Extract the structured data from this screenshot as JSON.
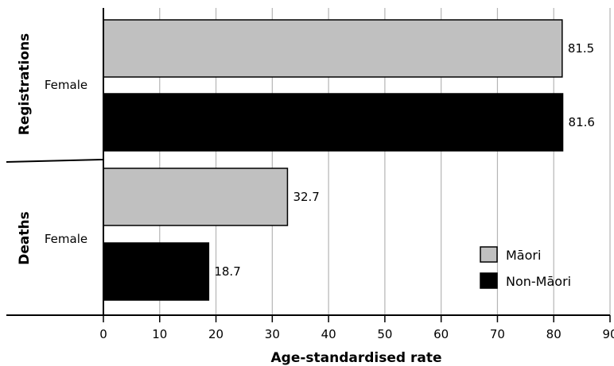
{
  "chart_data": {
    "type": "bar",
    "orientation": "horizontal",
    "xlabel": "Age-standardised rate",
    "xlim": [
      0,
      90
    ],
    "xticks": [
      0,
      10,
      20,
      30,
      40,
      50,
      60,
      70,
      80,
      90
    ],
    "grid": true,
    "groups": [
      {
        "name": "Registrations",
        "category": "Female"
      },
      {
        "name": "Deaths",
        "category": "Female"
      }
    ],
    "series": [
      {
        "name": "Māori",
        "color": "#c0c0c0",
        "values": [
          81.5,
          32.7
        ],
        "labels": [
          "81.5",
          "32.7"
        ]
      },
      {
        "name": "Non-Māori",
        "color": "#000000",
        "values": [
          81.6,
          18.7
        ],
        "labels": [
          "81.6",
          "18.7"
        ]
      }
    ],
    "legend_position": "bottom-right"
  }
}
